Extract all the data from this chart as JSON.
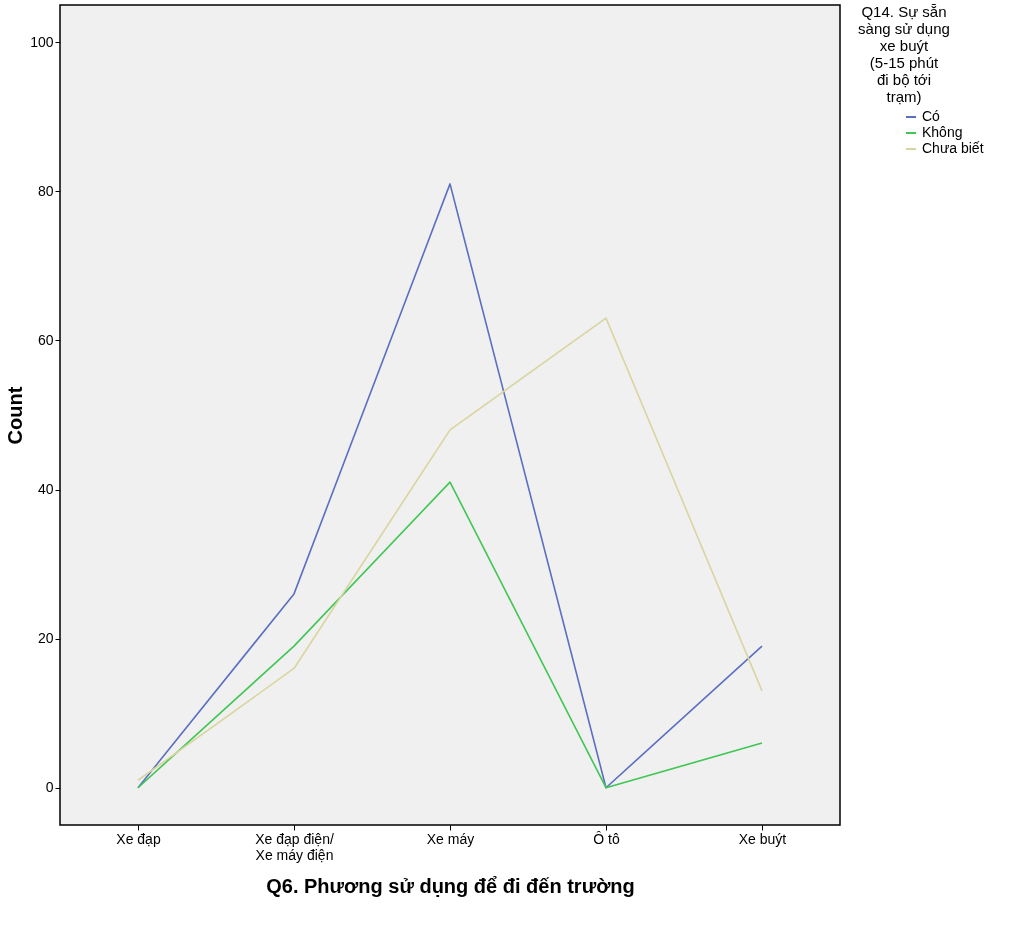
{
  "chart_data": {
    "type": "line",
    "xlabel": "Q6. Phương sử dụng để đi đến trường",
    "ylabel": "Count",
    "legend_title": "Q14. Sự sẵn sàng sử dụng xe buýt (5-15 phút đi bộ tới trạm)",
    "categories": [
      "Xe đạp",
      "Xe đạp điện/ Xe máy điện",
      "Xe máy",
      "Ô tô",
      "Xe buýt"
    ],
    "series": [
      {
        "name": "Có",
        "color": "#5b6fc0",
        "values": [
          0,
          26,
          81,
          0,
          19
        ]
      },
      {
        "name": "Không",
        "color": "#3fc653",
        "values": [
          0,
          19,
          41,
          0,
          6
        ]
      },
      {
        "name": "Chưa biết",
        "color": "#d9d5a0",
        "values": [
          1,
          16,
          48,
          63,
          13
        ]
      }
    ],
    "ylim": [
      -5,
      105
    ],
    "yticks": [
      0,
      20,
      40,
      60,
      80,
      100
    ],
    "grid": false,
    "legend": "top right",
    "marker": "none",
    "line_style": "solid"
  }
}
